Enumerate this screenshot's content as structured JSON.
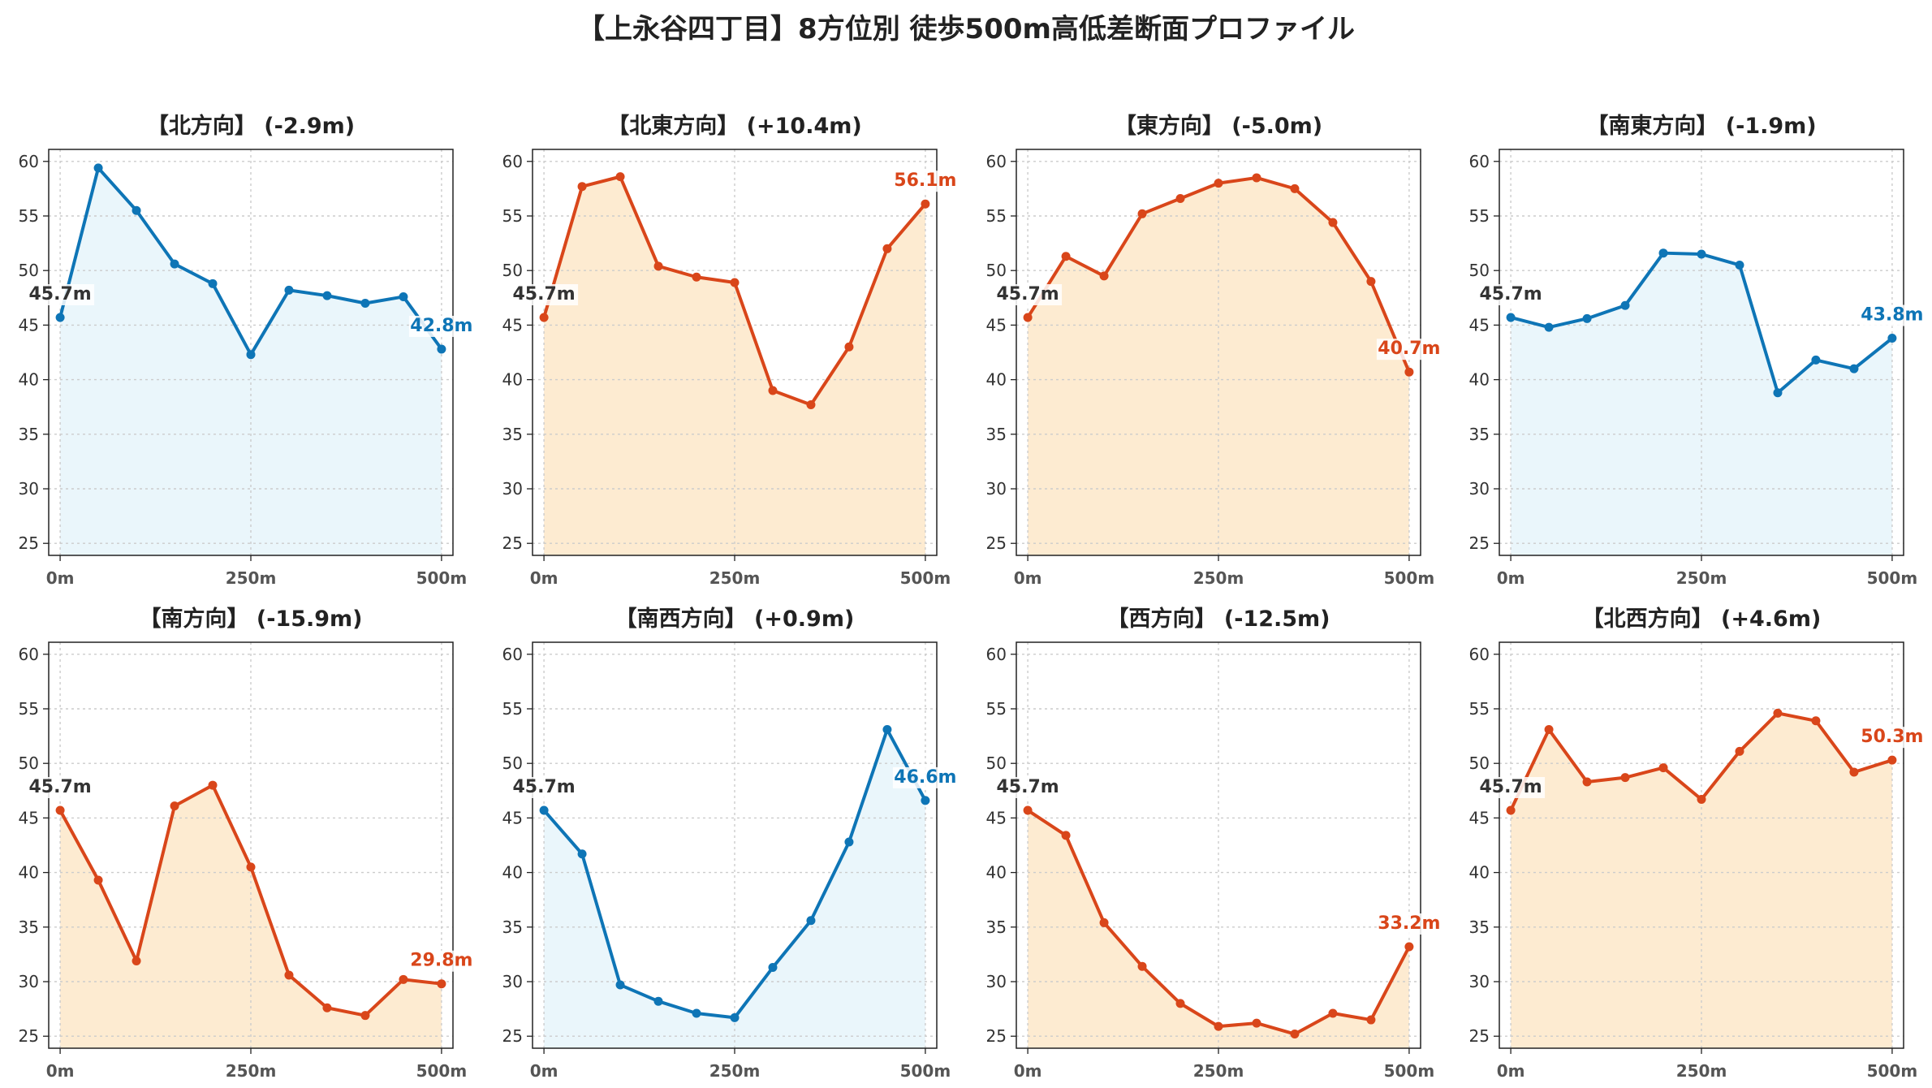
{
  "title": "【上永谷四丁目】8方位別 徒歩500m高低差断面プロファイル",
  "colors": {
    "up_line": "#d9461a",
    "up_fill": "#fdebd1",
    "down_line": "#0e75b6",
    "down_fill": "#eaf6fb",
    "start_label": "#333333"
  },
  "chart_data": [
    {
      "type": "area",
      "title": "【北方向】 (-2.9m)",
      "trend": "down",
      "x": [
        0,
        50,
        100,
        150,
        200,
        250,
        300,
        350,
        400,
        450,
        500
      ],
      "values": [
        45.7,
        59.4,
        55.5,
        50.6,
        48.8,
        42.3,
        48.2,
        47.7,
        47.0,
        47.6,
        42.8
      ],
      "xticks": [
        "0m",
        "250m",
        "500m"
      ],
      "yticks": [
        "25",
        "30",
        "35",
        "40",
        "45",
        "50",
        "55",
        "60"
      ],
      "start_label": "45.7m",
      "end_label": "42.8m",
      "xlim": [
        -15,
        515
      ],
      "ylim": [
        23.9,
        61.1
      ],
      "grid": true
    },
    {
      "type": "area",
      "title": "【北東方向】 (+10.4m)",
      "trend": "up",
      "x": [
        0,
        50,
        100,
        150,
        200,
        250,
        300,
        350,
        400,
        450,
        500
      ],
      "values": [
        45.7,
        57.7,
        58.6,
        50.4,
        49.4,
        48.9,
        39.0,
        37.7,
        43.0,
        52.0,
        56.1
      ],
      "xticks": [
        "0m",
        "250m",
        "500m"
      ],
      "yticks": [
        "25",
        "30",
        "35",
        "40",
        "45",
        "50",
        "55",
        "60"
      ],
      "start_label": "45.7m",
      "end_label": "56.1m",
      "xlim": [
        -15,
        515
      ],
      "ylim": [
        23.9,
        61.1
      ],
      "grid": true
    },
    {
      "type": "area",
      "title": "【東方向】 (-5.0m)",
      "trend": "up",
      "x": [
        0,
        50,
        100,
        150,
        200,
        250,
        300,
        350,
        400,
        450,
        500
      ],
      "values": [
        45.7,
        51.3,
        49.5,
        55.2,
        56.6,
        58.0,
        58.5,
        57.5,
        54.4,
        49.0,
        40.7
      ],
      "xticks": [
        "0m",
        "250m",
        "500m"
      ],
      "yticks": [
        "25",
        "30",
        "35",
        "40",
        "45",
        "50",
        "55",
        "60"
      ],
      "start_label": "45.7m",
      "end_label": "40.7m",
      "xlim": [
        -15,
        515
      ],
      "ylim": [
        23.9,
        61.1
      ],
      "grid": true
    },
    {
      "type": "area",
      "title": "【南東方向】 (-1.9m)",
      "trend": "down",
      "x": [
        0,
        50,
        100,
        150,
        200,
        250,
        300,
        350,
        400,
        450,
        500
      ],
      "values": [
        45.7,
        44.8,
        45.6,
        46.8,
        51.6,
        51.5,
        50.5,
        38.8,
        41.8,
        41.0,
        43.8
      ],
      "xticks": [
        "0m",
        "250m",
        "500m"
      ],
      "yticks": [
        "25",
        "30",
        "35",
        "40",
        "45",
        "50",
        "55",
        "60"
      ],
      "start_label": "45.7m",
      "end_label": "43.8m",
      "xlim": [
        -15,
        515
      ],
      "ylim": [
        23.9,
        61.1
      ],
      "grid": true
    },
    {
      "type": "area",
      "title": "【南方向】 (-15.9m)",
      "trend": "up",
      "x": [
        0,
        50,
        100,
        150,
        200,
        250,
        300,
        350,
        400,
        450,
        500
      ],
      "values": [
        45.7,
        39.3,
        31.9,
        46.1,
        48.0,
        40.5,
        30.6,
        27.6,
        26.9,
        30.2,
        29.8
      ],
      "xticks": [
        "0m",
        "250m",
        "500m"
      ],
      "yticks": [
        "25",
        "30",
        "35",
        "40",
        "45",
        "50",
        "55",
        "60"
      ],
      "start_label": "45.7m",
      "end_label": "29.8m",
      "xlim": [
        -15,
        515
      ],
      "ylim": [
        23.9,
        61.1
      ],
      "grid": true
    },
    {
      "type": "area",
      "title": "【南西方向】 (+0.9m)",
      "trend": "down",
      "x": [
        0,
        50,
        100,
        150,
        200,
        250,
        300,
        350,
        400,
        450,
        500
      ],
      "values": [
        45.7,
        41.7,
        29.7,
        28.2,
        27.1,
        26.7,
        31.3,
        35.6,
        42.8,
        53.1,
        46.6
      ],
      "xticks": [
        "0m",
        "250m",
        "500m"
      ],
      "yticks": [
        "25",
        "30",
        "35",
        "40",
        "45",
        "50",
        "55",
        "60"
      ],
      "start_label": "45.7m",
      "end_label": "46.6m",
      "xlim": [
        -15,
        515
      ],
      "ylim": [
        23.9,
        61.1
      ],
      "grid": true
    },
    {
      "type": "area",
      "title": "【西方向】 (-12.5m)",
      "trend": "up",
      "x": [
        0,
        50,
        100,
        150,
        200,
        250,
        300,
        350,
        400,
        450,
        500
      ],
      "values": [
        45.7,
        43.4,
        35.4,
        31.4,
        28.0,
        25.9,
        26.2,
        25.2,
        27.1,
        26.5,
        33.2
      ],
      "xticks": [
        "0m",
        "250m",
        "500m"
      ],
      "yticks": [
        "25",
        "30",
        "35",
        "40",
        "45",
        "50",
        "55",
        "60"
      ],
      "start_label": "45.7m",
      "end_label": "33.2m",
      "xlim": [
        -15,
        515
      ],
      "ylim": [
        23.9,
        61.1
      ],
      "grid": true
    },
    {
      "type": "area",
      "title": "【北西方向】 (+4.6m)",
      "trend": "up",
      "x": [
        0,
        50,
        100,
        150,
        200,
        250,
        300,
        350,
        400,
        450,
        500
      ],
      "values": [
        45.7,
        53.1,
        48.3,
        48.7,
        49.6,
        46.7,
        51.1,
        54.6,
        53.9,
        49.2,
        50.3
      ],
      "xticks": [
        "0m",
        "250m",
        "500m"
      ],
      "yticks": [
        "25",
        "30",
        "35",
        "40",
        "45",
        "50",
        "55",
        "60"
      ],
      "start_label": "45.7m",
      "end_label": "50.3m",
      "xlim": [
        -15,
        515
      ],
      "ylim": [
        23.9,
        61.1
      ],
      "grid": true
    }
  ]
}
